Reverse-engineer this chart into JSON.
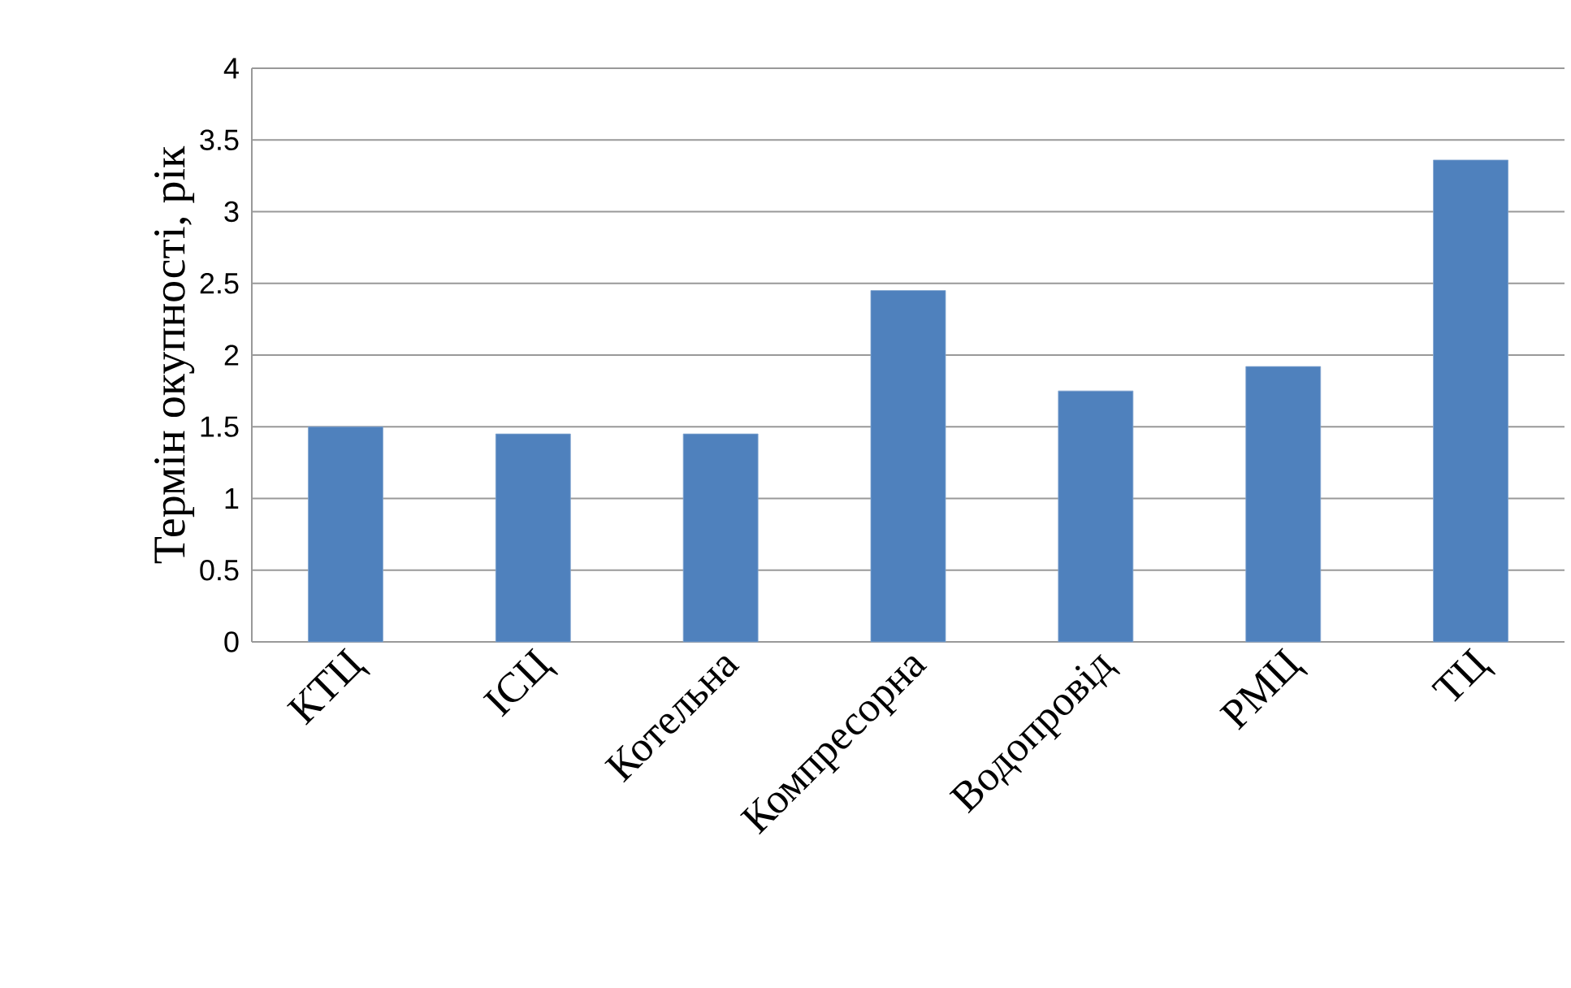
{
  "chart_data": {
    "type": "bar",
    "ylabel": "Термін окупності, рік",
    "categories": [
      "КТЦ",
      "ІСЦ",
      "Котельна",
      "Компресорна",
      "Водопровід",
      "РМЦ",
      "ТЦ"
    ],
    "values": [
      1.5,
      1.45,
      1.45,
      2.45,
      1.75,
      1.92,
      3.36
    ],
    "color": "#4f81bd",
    "ylim": [
      0,
      4
    ],
    "yticks": [
      0,
      0.5,
      1,
      1.5,
      2,
      2.5,
      3,
      3.5,
      4
    ],
    "grid": "y"
  }
}
